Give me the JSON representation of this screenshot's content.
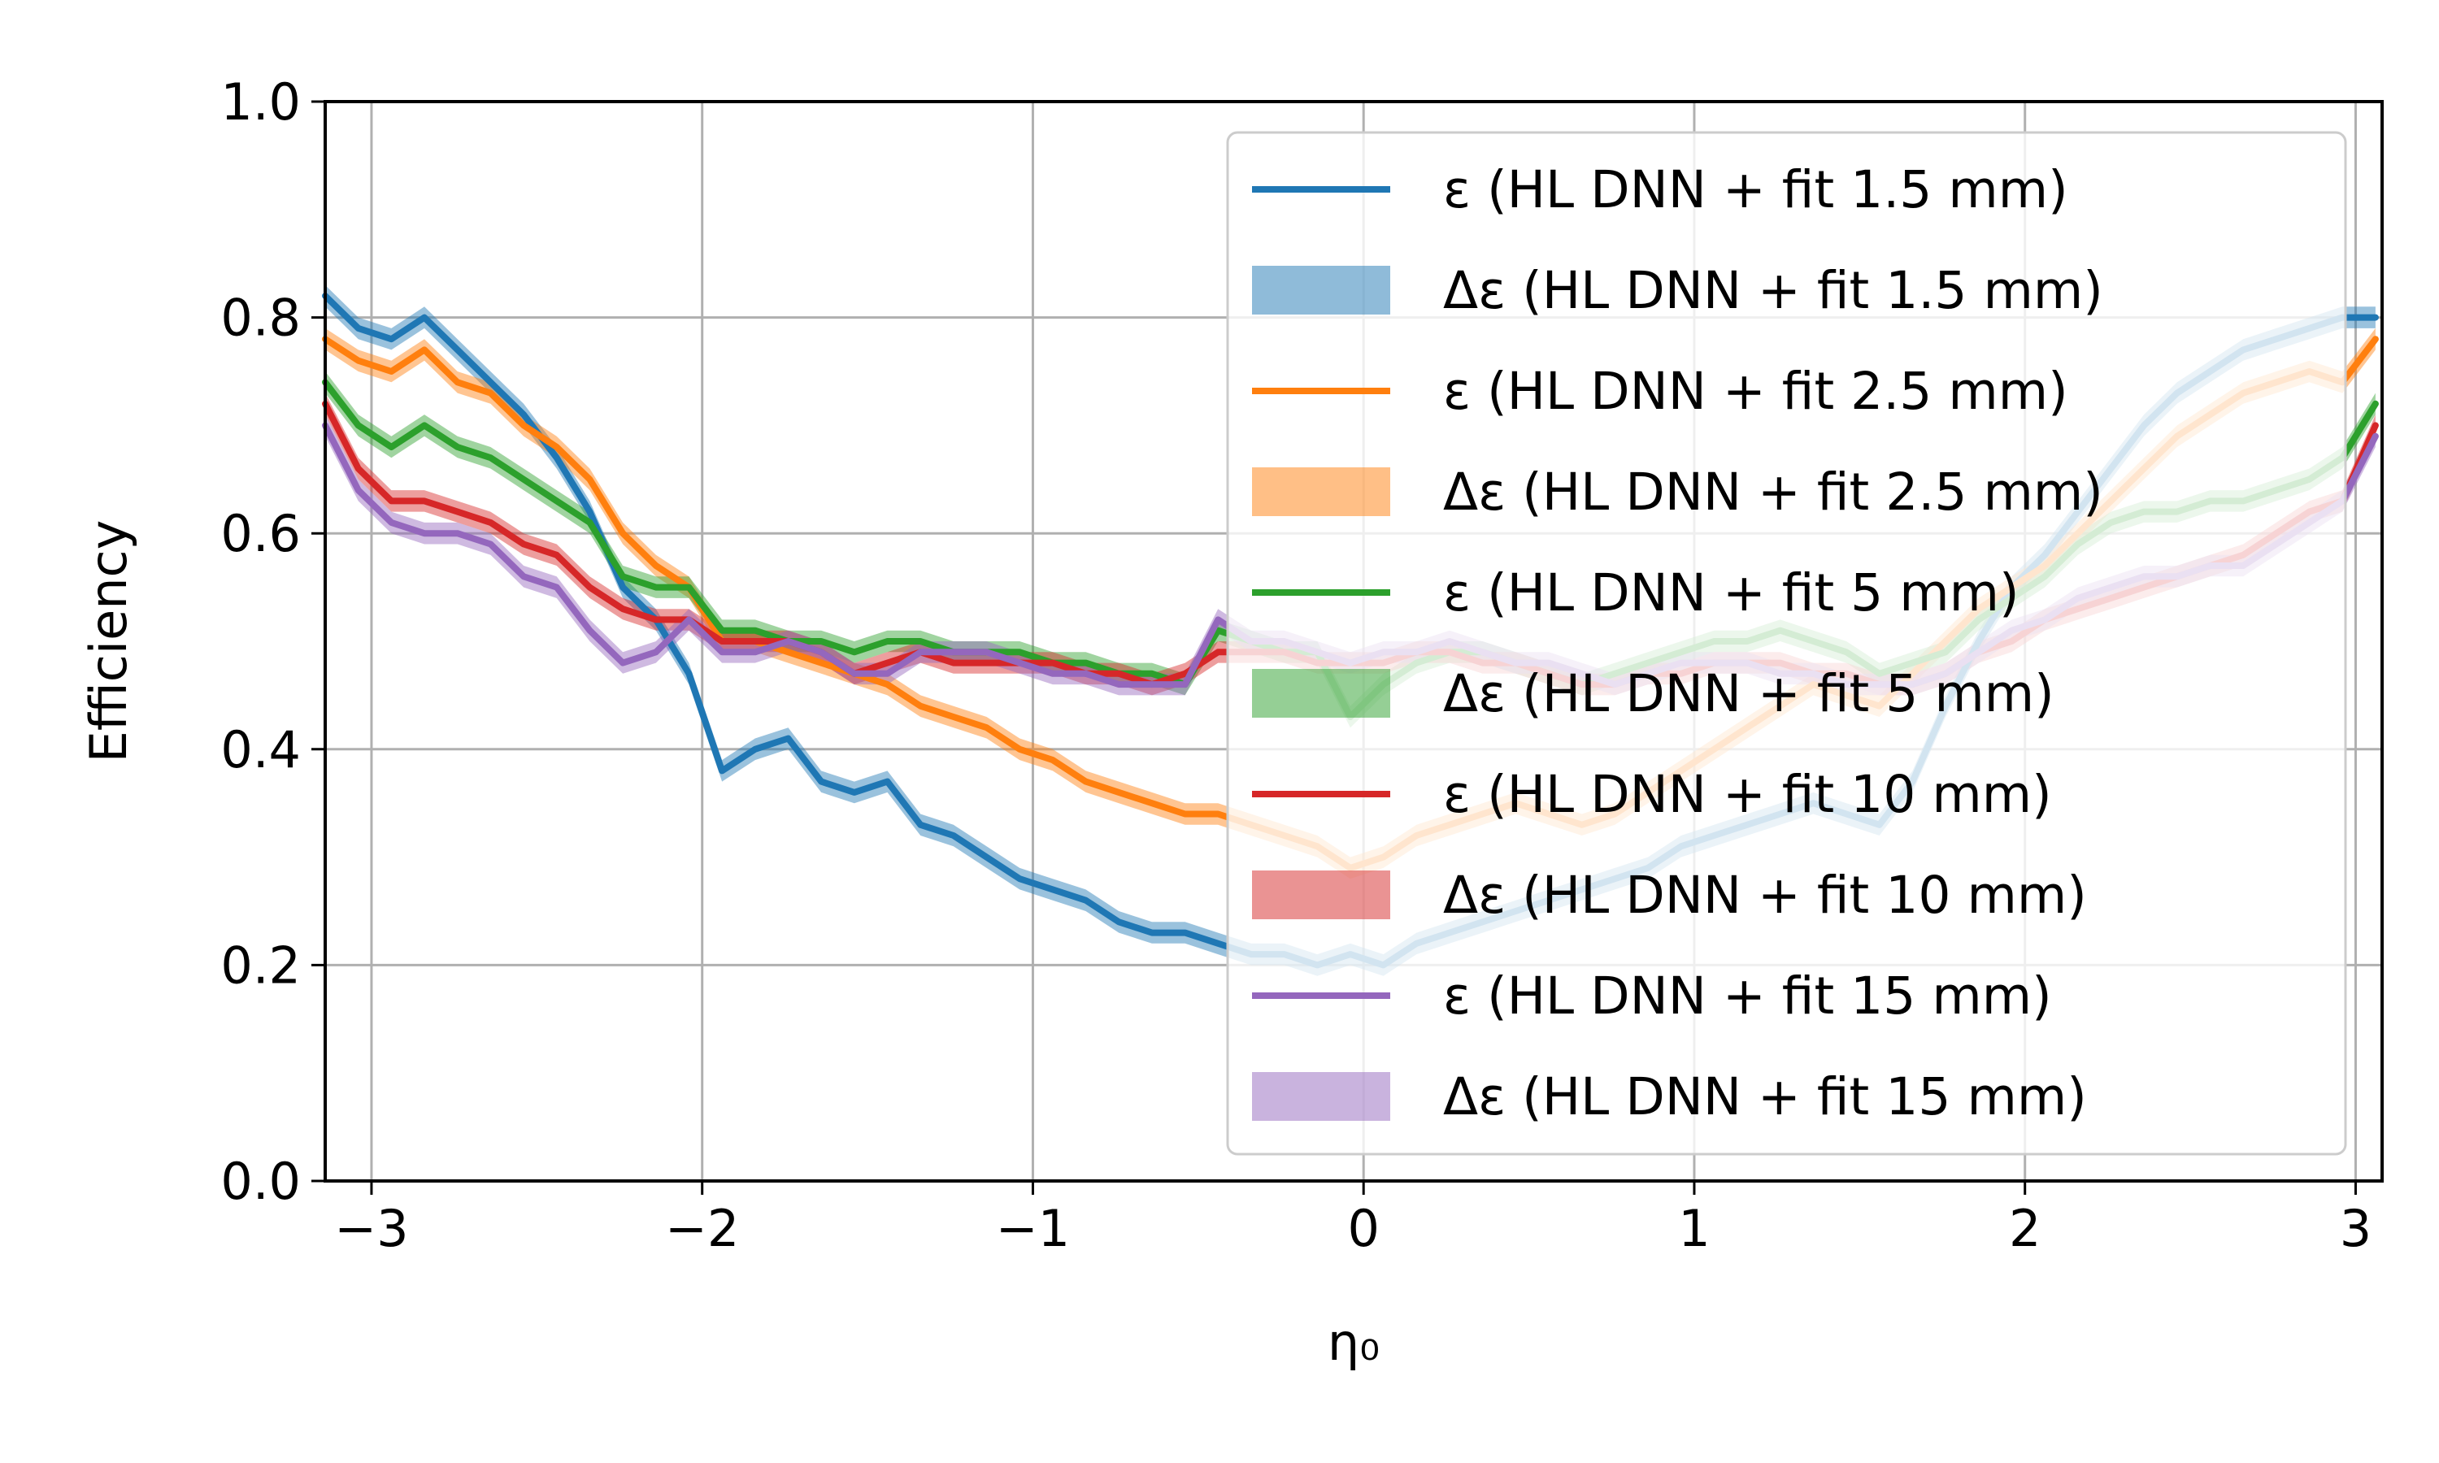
{
  "chart_data": {
    "type": "line",
    "xlabel": "η₀",
    "ylabel": "Efficiency",
    "xlim": [
      -3.14,
      3.08
    ],
    "ylim": [
      0.0,
      1.0
    ],
    "x_ticks": [
      -3,
      -2,
      -1,
      0,
      1,
      2,
      3
    ],
    "x_tick_labels": [
      "−3",
      "−2",
      "−1",
      "0",
      "1",
      "2",
      "3"
    ],
    "y_ticks": [
      0.0,
      0.2,
      0.4,
      0.6,
      0.8,
      1.0
    ],
    "y_tick_labels": [
      "0.0",
      "0.2",
      "0.4",
      "0.6",
      "0.8",
      "1.0"
    ],
    "grid": true,
    "legend_position": "top-right",
    "band_halfwidth": 0.01,
    "legend": [
      {
        "label": "ε (HL DNN + fit 1.5 mm)",
        "kind": "line",
        "color": "#1f77b4"
      },
      {
        "label": "Δε (HL DNN + fit 1.5 mm)",
        "kind": "band",
        "color": "#1f77b4"
      },
      {
        "label": "ε (HL DNN + fit 2.5 mm)",
        "kind": "line",
        "color": "#ff7f0e"
      },
      {
        "label": "Δε (HL DNN + fit 2.5 mm)",
        "kind": "band",
        "color": "#ff7f0e"
      },
      {
        "label": "ε (HL DNN + fit 5 mm)",
        "kind": "line",
        "color": "#2ca02c"
      },
      {
        "label": "Δε (HL DNN + fit 5 mm)",
        "kind": "band",
        "color": "#2ca02c"
      },
      {
        "label": "ε (HL DNN + fit 10 mm)",
        "kind": "line",
        "color": "#d62728"
      },
      {
        "label": "Δε (HL DNN + fit 10 mm)",
        "kind": "band",
        "color": "#d62728"
      },
      {
        "label": "ε (HL DNN + fit 15 mm)",
        "kind": "line",
        "color": "#9467bd"
      },
      {
        "label": "Δε (HL DNN + fit 15 mm)",
        "kind": "band",
        "color": "#9467bd"
      }
    ],
    "series": [
      {
        "name": "ε (HL DNN + fit 1.5 mm)",
        "color": "#1f77b4",
        "x": [
          -3.14,
          -3.04,
          -2.94,
          -2.84,
          -2.74,
          -2.64,
          -2.54,
          -2.44,
          -2.34,
          -2.24,
          -2.14,
          -2.04,
          -1.94,
          -1.84,
          -1.74,
          -1.64,
          -1.54,
          -1.44,
          -1.34,
          -1.24,
          -1.14,
          -1.04,
          -0.94,
          -0.84,
          -0.74,
          -0.64,
          -0.54,
          -0.44,
          -0.34,
          -0.24,
          -0.14,
          -0.04,
          0.06,
          0.16,
          0.26,
          0.36,
          0.46,
          0.56,
          0.66,
          0.76,
          0.86,
          0.96,
          1.06,
          1.16,
          1.26,
          1.36,
          1.46,
          1.56,
          1.66,
          1.76,
          1.86,
          1.96,
          2.06,
          2.16,
          2.26,
          2.36,
          2.46,
          2.56,
          2.66,
          2.76,
          2.86,
          2.96,
          3.06
        ],
        "values": [
          0.82,
          0.79,
          0.78,
          0.8,
          0.77,
          0.74,
          0.71,
          0.67,
          0.62,
          0.55,
          0.52,
          0.47,
          0.38,
          0.4,
          0.41,
          0.37,
          0.36,
          0.37,
          0.33,
          0.32,
          0.3,
          0.28,
          0.27,
          0.26,
          0.24,
          0.23,
          0.23,
          0.22,
          0.21,
          0.21,
          0.2,
          0.21,
          0.2,
          0.22,
          0.23,
          0.24,
          0.25,
          0.26,
          0.27,
          0.28,
          0.29,
          0.31,
          0.32,
          0.33,
          0.34,
          0.35,
          0.34,
          0.33,
          0.37,
          0.44,
          0.5,
          0.55,
          0.58,
          0.62,
          0.66,
          0.7,
          0.73,
          0.75,
          0.77,
          0.78,
          0.79,
          0.8,
          0.8
        ]
      },
      {
        "name": "ε (HL DNN + fit 2.5 mm)",
        "color": "#ff7f0e",
        "x": [
          -3.14,
          -3.04,
          -2.94,
          -2.84,
          -2.74,
          -2.64,
          -2.54,
          -2.44,
          -2.34,
          -2.24,
          -2.14,
          -2.04,
          -1.94,
          -1.84,
          -1.74,
          -1.64,
          -1.54,
          -1.44,
          -1.34,
          -1.24,
          -1.14,
          -1.04,
          -0.94,
          -0.84,
          -0.74,
          -0.64,
          -0.54,
          -0.44,
          -0.34,
          -0.24,
          -0.14,
          -0.04,
          0.06,
          0.16,
          0.26,
          0.36,
          0.46,
          0.56,
          0.66,
          0.76,
          0.86,
          0.96,
          1.06,
          1.16,
          1.26,
          1.36,
          1.46,
          1.56,
          1.66,
          1.76,
          1.86,
          1.96,
          2.06,
          2.16,
          2.26,
          2.36,
          2.46,
          2.56,
          2.66,
          2.76,
          2.86,
          2.96,
          3.06
        ],
        "values": [
          0.78,
          0.76,
          0.75,
          0.77,
          0.74,
          0.73,
          0.7,
          0.68,
          0.65,
          0.6,
          0.57,
          0.55,
          0.5,
          0.5,
          0.49,
          0.48,
          0.47,
          0.46,
          0.44,
          0.43,
          0.42,
          0.4,
          0.39,
          0.37,
          0.36,
          0.35,
          0.34,
          0.34,
          0.33,
          0.32,
          0.31,
          0.29,
          0.3,
          0.32,
          0.33,
          0.34,
          0.35,
          0.34,
          0.33,
          0.34,
          0.36,
          0.38,
          0.4,
          0.42,
          0.44,
          0.46,
          0.45,
          0.44,
          0.47,
          0.5,
          0.53,
          0.55,
          0.57,
          0.6,
          0.63,
          0.66,
          0.69,
          0.71,
          0.73,
          0.74,
          0.75,
          0.74,
          0.78
        ]
      },
      {
        "name": "ε (HL DNN + fit 5 mm)",
        "color": "#2ca02c",
        "x": [
          -3.14,
          -3.04,
          -2.94,
          -2.84,
          -2.74,
          -2.64,
          -2.54,
          -2.44,
          -2.34,
          -2.24,
          -2.14,
          -2.04,
          -1.94,
          -1.84,
          -1.74,
          -1.64,
          -1.54,
          -1.44,
          -1.34,
          -1.24,
          -1.14,
          -1.04,
          -0.94,
          -0.84,
          -0.74,
          -0.64,
          -0.54,
          -0.44,
          -0.34,
          -0.24,
          -0.14,
          -0.04,
          0.06,
          0.16,
          0.26,
          0.36,
          0.46,
          0.56,
          0.66,
          0.76,
          0.86,
          0.96,
          1.06,
          1.16,
          1.26,
          1.36,
          1.46,
          1.56,
          1.66,
          1.76,
          1.86,
          1.96,
          2.06,
          2.16,
          2.26,
          2.36,
          2.46,
          2.56,
          2.66,
          2.76,
          2.86,
          2.96,
          3.06
        ],
        "values": [
          0.74,
          0.7,
          0.68,
          0.7,
          0.68,
          0.67,
          0.65,
          0.63,
          0.61,
          0.56,
          0.55,
          0.55,
          0.51,
          0.51,
          0.5,
          0.5,
          0.49,
          0.5,
          0.5,
          0.49,
          0.49,
          0.49,
          0.48,
          0.48,
          0.47,
          0.47,
          0.46,
          0.51,
          0.5,
          0.49,
          0.49,
          0.43,
          0.46,
          0.48,
          0.49,
          0.49,
          0.48,
          0.47,
          0.46,
          0.47,
          0.48,
          0.49,
          0.5,
          0.5,
          0.51,
          0.5,
          0.49,
          0.47,
          0.48,
          0.49,
          0.52,
          0.54,
          0.56,
          0.59,
          0.61,
          0.62,
          0.62,
          0.63,
          0.63,
          0.64,
          0.65,
          0.67,
          0.72
        ]
      },
      {
        "name": "ε (HL DNN + fit 10 mm)",
        "color": "#d62728",
        "x": [
          -3.14,
          -3.04,
          -2.94,
          -2.84,
          -2.74,
          -2.64,
          -2.54,
          -2.44,
          -2.34,
          -2.24,
          -2.14,
          -2.04,
          -1.94,
          -1.84,
          -1.74,
          -1.64,
          -1.54,
          -1.44,
          -1.34,
          -1.24,
          -1.14,
          -1.04,
          -0.94,
          -0.84,
          -0.74,
          -0.64,
          -0.54,
          -0.44,
          -0.34,
          -0.24,
          -0.14,
          -0.04,
          0.06,
          0.16,
          0.26,
          0.36,
          0.46,
          0.56,
          0.66,
          0.76,
          0.86,
          0.96,
          1.06,
          1.16,
          1.26,
          1.36,
          1.46,
          1.56,
          1.66,
          1.76,
          1.86,
          1.96,
          2.06,
          2.16,
          2.26,
          2.36,
          2.46,
          2.56,
          2.66,
          2.76,
          2.86,
          2.96,
          3.06
        ],
        "values": [
          0.72,
          0.66,
          0.63,
          0.63,
          0.62,
          0.61,
          0.59,
          0.58,
          0.55,
          0.53,
          0.52,
          0.52,
          0.5,
          0.5,
          0.5,
          0.49,
          0.47,
          0.48,
          0.49,
          0.48,
          0.48,
          0.48,
          0.48,
          0.47,
          0.47,
          0.46,
          0.47,
          0.49,
          0.49,
          0.49,
          0.48,
          0.48,
          0.48,
          0.49,
          0.49,
          0.48,
          0.48,
          0.47,
          0.46,
          0.46,
          0.47,
          0.47,
          0.48,
          0.48,
          0.48,
          0.47,
          0.47,
          0.46,
          0.46,
          0.47,
          0.49,
          0.5,
          0.52,
          0.53,
          0.54,
          0.55,
          0.56,
          0.57,
          0.58,
          0.6,
          0.62,
          0.63,
          0.7
        ]
      },
      {
        "name": "ε (HL DNN + fit 15 mm)",
        "color": "#9467bd",
        "x": [
          -3.14,
          -3.04,
          -2.94,
          -2.84,
          -2.74,
          -2.64,
          -2.54,
          -2.44,
          -2.34,
          -2.24,
          -2.14,
          -2.04,
          -1.94,
          -1.84,
          -1.74,
          -1.64,
          -1.54,
          -1.44,
          -1.34,
          -1.24,
          -1.14,
          -1.04,
          -0.94,
          -0.84,
          -0.74,
          -0.64,
          -0.54,
          -0.44,
          -0.34,
          -0.24,
          -0.14,
          -0.04,
          0.06,
          0.16,
          0.26,
          0.36,
          0.46,
          0.56,
          0.66,
          0.76,
          0.86,
          0.96,
          1.06,
          1.16,
          1.26,
          1.36,
          1.46,
          1.56,
          1.66,
          1.76,
          1.86,
          1.96,
          2.06,
          2.16,
          2.26,
          2.36,
          2.46,
          2.56,
          2.66,
          2.76,
          2.86,
          2.96,
          3.06
        ],
        "values": [
          0.7,
          0.64,
          0.61,
          0.6,
          0.6,
          0.59,
          0.56,
          0.55,
          0.51,
          0.48,
          0.49,
          0.52,
          0.49,
          0.49,
          0.5,
          0.49,
          0.47,
          0.47,
          0.49,
          0.49,
          0.49,
          0.48,
          0.47,
          0.47,
          0.46,
          0.46,
          0.46,
          0.52,
          0.5,
          0.5,
          0.49,
          0.48,
          0.49,
          0.49,
          0.5,
          0.49,
          0.48,
          0.48,
          0.47,
          0.46,
          0.47,
          0.48,
          0.48,
          0.48,
          0.47,
          0.47,
          0.46,
          0.46,
          0.46,
          0.47,
          0.49,
          0.51,
          0.52,
          0.54,
          0.55,
          0.56,
          0.56,
          0.57,
          0.57,
          0.59,
          0.61,
          0.63,
          0.69
        ]
      }
    ]
  }
}
